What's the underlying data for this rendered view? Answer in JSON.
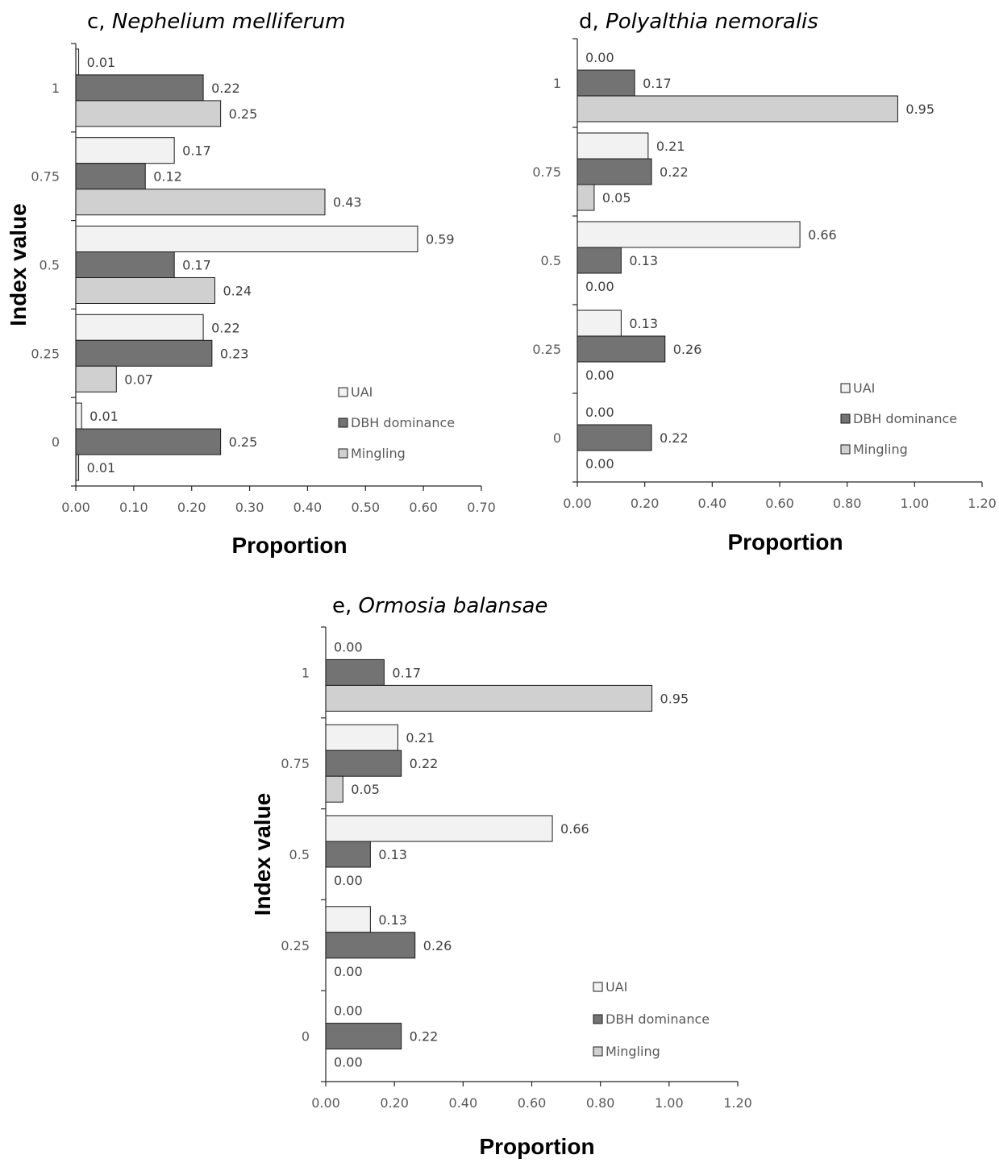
{
  "colors": {
    "UAI": "#f2f2f2",
    "DBH dominance": "#737373",
    "Mingling": "#d0d0d0",
    "bar_stroke": "#1a1a1a",
    "axis": "#262626"
  },
  "chart_data": [
    {
      "type": "bar",
      "orientation": "horizontal",
      "title_prefix": "c, ",
      "title_species": "Nephelium melliferum",
      "xlabel": "Proportion",
      "ylabel": "Index value",
      "xlim": [
        0,
        0.7
      ],
      "xticks": [
        "0.00",
        "0.10",
        "0.20",
        "0.30",
        "0.40",
        "0.50",
        "0.60",
        "0.70"
      ],
      "categories": [
        "1",
        "0.75",
        "0.5",
        "0.25",
        "0"
      ],
      "legend": "lower-right",
      "series": [
        {
          "name": "UAI",
          "values": [
            0.005,
            0.17,
            0.59,
            0.22,
            0.01
          ],
          "labels": [
            "0.01",
            "0.17",
            "0.59",
            "0.22",
            "0.01"
          ]
        },
        {
          "name": "DBH dominance",
          "values": [
            0.22,
            0.12,
            0.17,
            0.235,
            0.25
          ],
          "labels": [
            "0.22",
            "0.12",
            "0.17",
            "0.23",
            "0.25"
          ]
        },
        {
          "name": "Mingling",
          "values": [
            0.25,
            0.43,
            0.24,
            0.07,
            0.005
          ],
          "labels": [
            "0.25",
            "0.43",
            "0.24",
            "0.07",
            "0.01"
          ]
        }
      ]
    },
    {
      "type": "bar",
      "orientation": "horizontal",
      "title_prefix": "d, ",
      "title_species": "Polyalthia nemoralis",
      "xlabel": "Proportion",
      "ylabel": "",
      "xlim": [
        0,
        1.2
      ],
      "xticks": [
        "0.00",
        "0.20",
        "0.40",
        "0.60",
        "0.80",
        "1.00",
        "1.20"
      ],
      "categories": [
        "1",
        "0.75",
        "0.5",
        "0.25",
        "0"
      ],
      "legend": "lower-right",
      "series": [
        {
          "name": "UAI",
          "values": [
            0,
            0.21,
            0.66,
            0.13,
            0
          ],
          "labels": [
            "0.00",
            "0.21",
            "0.66",
            "0.13",
            "0.00"
          ]
        },
        {
          "name": "DBH dominance",
          "values": [
            0.17,
            0.22,
            0.13,
            0.26,
            0.22
          ],
          "labels": [
            "0.17",
            "0.22",
            "0.13",
            "0.26",
            "0.22"
          ]
        },
        {
          "name": "Mingling",
          "values": [
            0.95,
            0.05,
            0,
            0,
            0
          ],
          "labels": [
            "0.95",
            "0.05",
            "0.00",
            "0.00",
            "0.00"
          ]
        }
      ]
    },
    {
      "type": "bar",
      "orientation": "horizontal",
      "title_prefix": "e, ",
      "title_species": "Ormosia balansae",
      "xlabel": "Proportion",
      "ylabel": "Index value",
      "xlim": [
        0,
        1.2
      ],
      "xticks": [
        "0.00",
        "0.20",
        "0.40",
        "0.60",
        "0.80",
        "1.00",
        "1.20"
      ],
      "categories": [
        "1",
        "0.75",
        "0.5",
        "0.25",
        "0"
      ],
      "legend": "lower-right",
      "series": [
        {
          "name": "UAI",
          "values": [
            0,
            0.21,
            0.66,
            0.13,
            0
          ],
          "labels": [
            "0.00",
            "0.21",
            "0.66",
            "0.13",
            "0.00"
          ]
        },
        {
          "name": "DBH dominance",
          "values": [
            0.17,
            0.22,
            0.13,
            0.26,
            0.22
          ],
          "labels": [
            "0.17",
            "0.22",
            "0.13",
            "0.26",
            "0.22"
          ]
        },
        {
          "name": "Mingling",
          "values": [
            0.95,
            0.05,
            0,
            0,
            0
          ],
          "labels": [
            "0.95",
            "0.05",
            "0.00",
            "0.00",
            "0.00"
          ]
        }
      ]
    }
  ]
}
